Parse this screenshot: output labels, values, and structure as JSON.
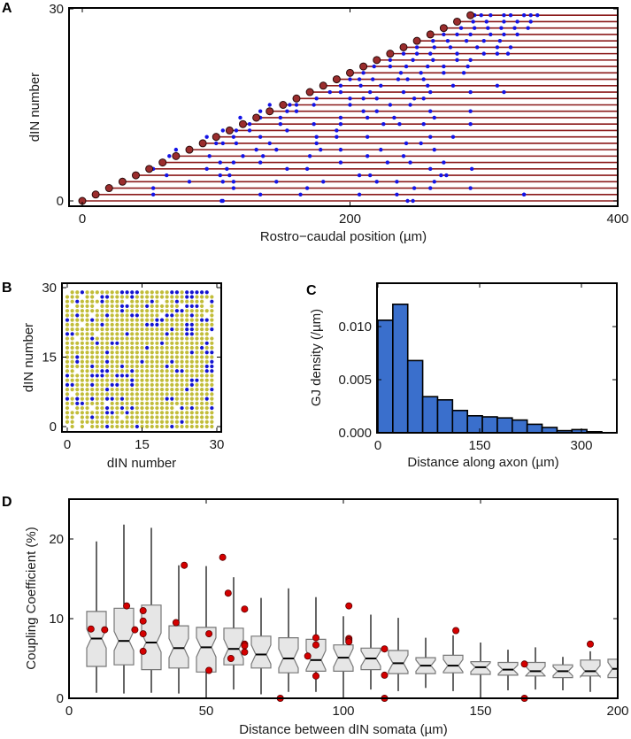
{
  "colors": {
    "axon": "#8b1a1a",
    "soma": "#9b2d2d",
    "synapse": "#1414e6",
    "gj_yellow": "#c2bd3a",
    "gj_blue": "#1414d0",
    "hist_bar": "#3a6fcc",
    "box_fill": "#e6e6e6",
    "box_edge": "#777777",
    "outlier": "#d40000"
  },
  "panels": {
    "A": {
      "letter": "A"
    },
    "B": {
      "letter": "B"
    },
    "C": {
      "letter": "C"
    },
    "D": {
      "letter": "D"
    }
  },
  "chart_data": [
    {
      "panel": "A",
      "type": "scatter",
      "title": "",
      "xlabel": "Rostro−caudal position (µm)",
      "ylabel": "dIN number",
      "xlim": [
        -10,
        400
      ],
      "ylim": [
        -0.5,
        30
      ],
      "xticks": [
        0,
        200,
        400
      ],
      "yticks": [
        0,
        30
      ],
      "xtick_labels": [
        "0",
        "200",
        "400"
      ],
      "ytick_labels": [
        "0",
        "30"
      ],
      "somata": {
        "start_x": 0,
        "step_x": 10,
        "count": 30,
        "axon_end_x": 400
      },
      "synapses": [
        [
          104,
          105,
          243,
          247
        ],
        [
          53,
          133,
          163,
          207,
          235,
          330,
          330
        ],
        [
          53,
          113,
          168,
          248,
          260,
          290
        ],
        [
          80,
          105,
          113,
          145,
          180,
          220,
          235,
          263
        ],
        [
          63,
          103,
          110,
          207,
          215,
          268,
          272
        ],
        [
          53,
          93,
          108,
          153,
          168,
          260,
          291
        ],
        [
          103,
          113,
          133,
          193,
          228,
          245,
          270
        ],
        [
          65,
          95,
          120,
          135,
          170,
          213,
          240
        ],
        [
          70,
          130,
          145,
          178,
          193,
          223,
          263
        ],
        [
          100,
          105,
          115,
          140,
          175,
          242,
          253
        ],
        [
          93,
          113,
          133,
          175,
          190,
          213,
          260,
          277
        ],
        [
          105,
          115,
          125,
          153,
          190
        ],
        [
          125,
          148,
          173,
          193,
          225,
          237,
          255,
          290
        ],
        [
          118,
          133,
          148,
          193,
          213,
          233,
          263
        ],
        [
          133,
          153,
          160,
          210,
          220,
          260,
          290
        ],
        [
          140,
          155,
          160,
          173,
          200,
          230,
          245
        ],
        [
          175,
          200,
          210,
          220,
          248,
          255
        ],
        [
          185,
          193,
          215,
          240,
          260,
          290,
          315
        ],
        [
          193,
          208,
          223,
          258,
          277,
          310
        ],
        [
          200,
          207,
          217,
          236,
          243,
          255
        ],
        [
          210,
          238,
          253,
          270,
          285
        ],
        [
          218,
          230,
          242,
          258,
          270,
          288
        ],
        [
          230,
          247,
          262,
          280,
          290
        ],
        [
          240,
          250,
          260,
          280,
          300,
          310,
          318
        ],
        [
          250,
          263,
          275,
          295,
          310,
          320
        ],
        [
          262,
          273,
          287,
          300,
          312
        ],
        [
          270,
          280,
          290,
          305,
          315,
          325
        ],
        [
          283,
          293,
          303,
          313,
          323,
          333
        ],
        [
          292,
          302,
          315,
          325,
          335
        ],
        [
          293,
          298,
          305,
          315,
          320,
          330,
          335,
          340
        ]
      ]
    },
    {
      "panel": "B",
      "type": "heatmap",
      "xlabel": "dIN number",
      "ylabel": "dIN number",
      "xlim": [
        0,
        30
      ],
      "ylim": [
        0,
        30
      ],
      "xticks": [
        0,
        15,
        30
      ],
      "yticks": [
        0,
        15,
        30
      ],
      "xtick_labels": [
        "0",
        "15",
        "30"
      ],
      "ytick_labels": [
        "0",
        "15",
        "30"
      ],
      "legend": {
        "b": "blue dot",
        "y": "yellow dot",
        ".": "empty"
      },
      "rows_top_to_bottom": [
        ".yybyyyyyyybbbbyyyyyybbybbbbb.",
        "yyy.yy.bbyyyybyyyyyyyyyybbyyyy",
        "yybyyyybyyyy.yyyyby.yybyyyyy.b",
        "y.yyyy.yyyybbyyybyyyyyy.bbby.y",
        "yyyyyyyyyyybyyyyyyyyyybbyyyyyy",
        "yybyy.yybyyyybbyyyy.bbyyybyy.y",
        "byyyybyyyyyyyyyyyybbyyyyyyybby",
        "yyy.yyybyyyyyyyybbbyyyyybbyyyy",
        "yyyyyyyyyyyyyyyyyyyyybyybbyyyb",
        "bbyyyy.yyyyybyyyyyyybyyybbyyy.",
        "yy.yybyyyyyyyyyyyyyyyyyyyyyyyy",
        "yyyyyybyybbyyyyyyyybyyyyyyyyby",
        "yyyyyyyyyyyyyyyybyyyyyyyyyybyy",
        "yyyyyyyybyyyyyyyyyyyyyyyybyybb",
        "yybyyyyyyyyyyyyyyyyyyyyyyyyyyy",
        "yybyyyyybyyyyyybyyyyybyyyyyyyb",
        "yyyyybyyyyybyyyyyyyybyyyyyyybb",
        "yy.yyyybbyyyybyyyyyyyybbyyyybb",
        "byyyybbbyybbbyyyyyyyyyyyyyyyyy",
        "yyyyyyyyyyyyybyyyyyyyyyyybbyyy",
        "bbyyybyyybbyybyyyyyyyyyyybyyyy",
        "yyyyyyyybyyyyyyyyyyyyyyybyyyyb",
        "y.yyyyyyyyyyyyyyyyyyyyyyyyyyyy",
        "bybyybyybbybyyyyyyyybbyyyyyyby",
        "yybbyyyy.yyyyyyyyyyyyyyyyyyyyy",
        "y.yyy.yybyybybyyyyyyyy.bybyyyb",
        "yyyyyyyybbyybyyyyyyyyyyyyyyyyy",
        "yy.yybyyyyy.yyyyyyyyyyyyyyyyyy",
        "yy.yyyyyyyyyyyyyyyyyyyybyyyyyy",
        ".y.y.yyybyyyyybyyyyyybyyyyyyyy"
      ]
    },
    {
      "panel": "C",
      "type": "bar",
      "xlabel": "Distance along axon (µm)",
      "ylabel": "GJ density (/µm)",
      "xlim": [
        0,
        350
      ],
      "ylim": [
        0,
        0.0145
      ],
      "xticks": [
        0,
        150,
        300
      ],
      "yticks": [
        0,
        0.005,
        0.01
      ],
      "xtick_labels": [
        "0",
        "150",
        "300"
      ],
      "ytick_labels": [
        "0.000",
        "0.005",
        "0.010"
      ],
      "bin_width": 22,
      "bin_starts": [
        0,
        22,
        44,
        66,
        88,
        110,
        132,
        154,
        176,
        198,
        220,
        242,
        264,
        286,
        308
      ],
      "values": [
        0.0106,
        0.0121,
        0.0068,
        0.0034,
        0.0031,
        0.0021,
        0.0016,
        0.0015,
        0.0014,
        0.0012,
        0.0008,
        0.0005,
        0.0002,
        0.0003,
        0.0001
      ]
    },
    {
      "panel": "D",
      "type": "box",
      "xlabel": "Distance between dIN somata (µm)",
      "ylabel": "Coupling Coefficient (%)",
      "xlim": [
        0,
        200
      ],
      "ylim": [
        0,
        25
      ],
      "xticks": [
        0,
        50,
        100,
        150,
        200
      ],
      "yticks": [
        0,
        10,
        20
      ],
      "xtick_labels": [
        "0",
        "50",
        "100",
        "150",
        "200"
      ],
      "ytick_labels": [
        "0",
        "10",
        "20"
      ],
      "boxes": [
        {
          "x": 10,
          "whislo": 0.7,
          "q1": 4.0,
          "med": 7.5,
          "q3": 10.9,
          "whishi": 19.7
        },
        {
          "x": 20,
          "whislo": 0.6,
          "q1": 4.2,
          "med": 7.2,
          "q3": 11.3,
          "whishi": 21.8
        },
        {
          "x": 30,
          "whislo": 0.7,
          "q1": 3.6,
          "med": 7.0,
          "q3": 11.7,
          "whishi": 21.4
        },
        {
          "x": 40,
          "whislo": 0.6,
          "q1": 3.8,
          "med": 6.3,
          "q3": 9.1,
          "whishi": 16.7
        },
        {
          "x": 50,
          "whislo": 0.0,
          "q1": 3.3,
          "med": 6.4,
          "q3": 8.9,
          "whishi": 16.6
        },
        {
          "x": 60,
          "whislo": 1.1,
          "q1": 4.2,
          "med": 6.2,
          "q3": 8.8,
          "whishi": 15.2
        },
        {
          "x": 70,
          "whislo": 0.5,
          "q1": 3.8,
          "med": 5.5,
          "q3": 7.8,
          "whishi": 12.6
        },
        {
          "x": 80,
          "whislo": 0.8,
          "q1": 3.2,
          "med": 5.0,
          "q3": 7.6,
          "whishi": 13.8
        },
        {
          "x": 90,
          "whislo": 0.8,
          "q1": 3.4,
          "med": 4.8,
          "q3": 7.4,
          "whishi": 12.7
        },
        {
          "x": 100,
          "whislo": 0.0,
          "q1": 3.4,
          "med": 5.1,
          "q3": 6.7,
          "whishi": 10.3
        },
        {
          "x": 110,
          "whislo": 1.1,
          "q1": 3.6,
          "med": 5.0,
          "q3": 6.3,
          "whishi": 10.5
        },
        {
          "x": 120,
          "whislo": 0.9,
          "q1": 3.1,
          "med": 4.4,
          "q3": 6.0,
          "whishi": 10.1
        },
        {
          "x": 130,
          "whislo": 1.3,
          "q1": 3.1,
          "med": 4.1,
          "q3": 5.1,
          "whishi": 7.6
        },
        {
          "x": 140,
          "whislo": 0.9,
          "q1": 3.2,
          "med": 4.1,
          "q3": 5.4,
          "whishi": 7.9
        },
        {
          "x": 150,
          "whislo": 0.0,
          "q1": 3.0,
          "med": 3.9,
          "q3": 4.6,
          "whishi": 7.0
        },
        {
          "x": 160,
          "whislo": 1.0,
          "q1": 2.9,
          "med": 3.6,
          "q3": 4.5,
          "whishi": 6.1
        },
        {
          "x": 170,
          "whislo": 1.1,
          "q1": 2.8,
          "med": 3.4,
          "q3": 4.5,
          "whishi": 6.4
        },
        {
          "x": 180,
          "whislo": 1.0,
          "q1": 2.6,
          "med": 3.4,
          "q3": 4.2,
          "whishi": 5.2
        },
        {
          "x": 190,
          "whislo": 0.8,
          "q1": 2.8,
          "med": 3.4,
          "q3": 4.8,
          "whishi": 5.9
        },
        {
          "x": 200,
          "whislo": 1.0,
          "q1": 2.6,
          "med": 3.7,
          "q3": 4.9,
          "whishi": 6.0
        }
      ],
      "points": [
        [
          8,
          8.7
        ],
        [
          13,
          8.6
        ],
        [
          21,
          11.6
        ],
        [
          24,
          8.6
        ],
        [
          27,
          11.0
        ],
        [
          27,
          9.7
        ],
        [
          27,
          8.1
        ],
        [
          27,
          5.9
        ],
        [
          39,
          9.5
        ],
        [
          42,
          16.7
        ],
        [
          51,
          8.1
        ],
        [
          51,
          3.5
        ],
        [
          56,
          17.7
        ],
        [
          58,
          13.2
        ],
        [
          59,
          5.0
        ],
        [
          64,
          11.2
        ],
        [
          64,
          6.8
        ],
        [
          64,
          6.6
        ],
        [
          64,
          5.8
        ],
        [
          77,
          0.0
        ],
        [
          87,
          5.3
        ],
        [
          90,
          7.6
        ],
        [
          90,
          6.7
        ],
        [
          90,
          2.8
        ],
        [
          102,
          11.6
        ],
        [
          102,
          7.5
        ],
        [
          102,
          7.3
        ],
        [
          102,
          7.1
        ],
        [
          115,
          6.2
        ],
        [
          115,
          2.9
        ],
        [
          115,
          0.0
        ],
        [
          141,
          8.5
        ],
        [
          166,
          4.3
        ],
        [
          166,
          0.0
        ],
        [
          190,
          6.8
        ]
      ]
    }
  ]
}
